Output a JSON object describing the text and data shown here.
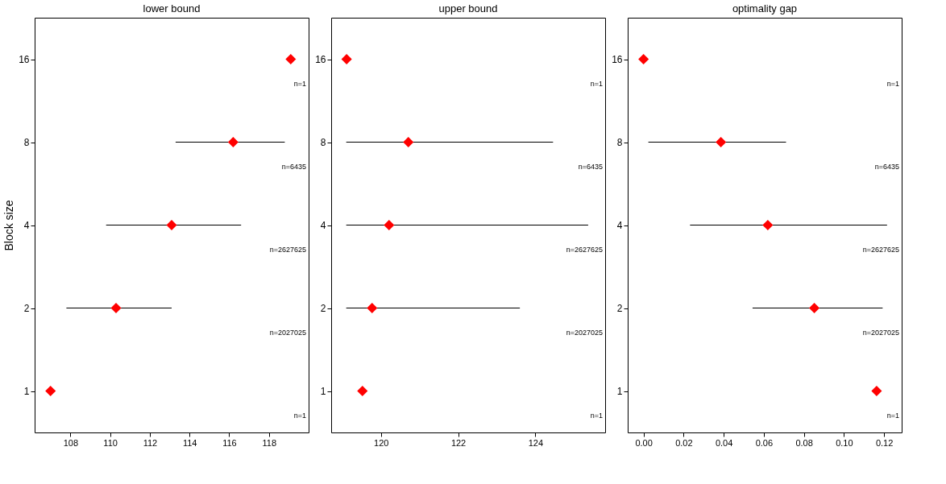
{
  "chart_data": [
    {
      "type": "scatter",
      "orientation": "horizontal",
      "title": "lower bound",
      "ylabel": "Block size",
      "marker": "diamond",
      "categories": [
        "16",
        "8",
        "4",
        "2",
        "1"
      ],
      "series": [
        {
          "color": "#ff0000",
          "values": [
            119.1,
            116.2,
            113.1,
            110.3,
            107.0
          ],
          "errors": [
            null,
            [
              113.3,
              118.8
            ],
            [
              109.8,
              116.6
            ],
            [
              107.8,
              113.1
            ],
            null
          ]
        }
      ],
      "xlim": [
        106.2,
        120.0
      ],
      "xticks": [
        108,
        110,
        112,
        114,
        116,
        118
      ],
      "annotations": [
        "n=1",
        "n=6435",
        "n=2627625",
        "n=2027025",
        "n=1"
      ]
    },
    {
      "type": "scatter",
      "orientation": "horizontal",
      "title": "upper bound",
      "marker": "diamond",
      "categories": [
        "16",
        "8",
        "4",
        "2",
        "1"
      ],
      "series": [
        {
          "color": "#ff0000",
          "values": [
            119.11,
            120.71,
            120.21,
            119.77,
            119.52
          ],
          "errors": [
            null,
            [
              119.1,
              124.46
            ],
            [
              119.1,
              125.37
            ],
            [
              119.1,
              123.6
            ],
            null
          ]
        }
      ],
      "xlim": [
        118.71,
        125.81
      ],
      "xticks": [
        120,
        122,
        124
      ],
      "annotations": [
        "n=1",
        "n=6435",
        "n=2627625",
        "n=2027025",
        "n=1"
      ]
    },
    {
      "type": "scatter",
      "orientation": "horizontal",
      "title": "optimality gap",
      "marker": "diamond",
      "categories": [
        "16",
        "8",
        "4",
        "2",
        "1"
      ],
      "series": [
        {
          "color": "#ff0000",
          "values": [
            0.0,
            0.0386,
            0.062,
            0.0852,
            0.1163
          ],
          "errors": [
            null,
            [
              0.0024,
              0.0711
            ],
            [
              0.0232,
              0.1215
            ],
            [
              0.0544,
              0.1193
            ],
            null
          ]
        }
      ],
      "xlim": [
        -0.0079,
        0.1288
      ],
      "xticks": [
        {
          "value": 0,
          "label": "0.00"
        },
        {
          "value": 0.02,
          "label": "0.02"
        },
        {
          "value": 0.04,
          "label": "0.04"
        },
        {
          "value": 0.06,
          "label": "0.06"
        },
        {
          "value": 0.08,
          "label": "0.08"
        },
        {
          "value": 0.1,
          "label": "0.10"
        },
        {
          "value": 0.12,
          "label": "0.12"
        }
      ],
      "annotations": [
        "n=1",
        "n=6435",
        "n=2627625",
        "n=2027025",
        "n=1"
      ]
    }
  ]
}
